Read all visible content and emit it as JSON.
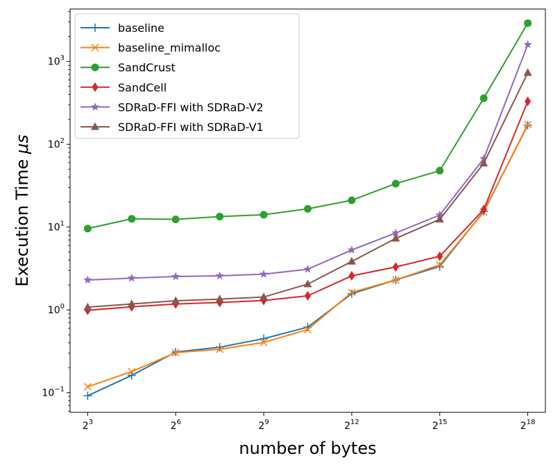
{
  "chart_data": {
    "type": "line",
    "xscale": "log2",
    "yscale": "log10",
    "xlabel": "number of bytes",
    "ylabel_prefix": "Execution Time ",
    "ylabel_symbol": "μs",
    "xlim_exp": [
      2.4,
      18.6
    ],
    "ylim": [
      0.058,
      4300
    ],
    "x_exponents": [
      3,
      4.5,
      6,
      7.5,
      9,
      10.5,
      12,
      13.5,
      15,
      16.5,
      18
    ],
    "xticks": [
      {
        "base": "2",
        "exp": "3",
        "value": 3
      },
      {
        "base": "2",
        "exp": "6",
        "value": 6
      },
      {
        "base": "2",
        "exp": "9",
        "value": 9
      },
      {
        "base": "2",
        "exp": "12",
        "value": 12
      },
      {
        "base": "2",
        "exp": "15",
        "value": 15
      },
      {
        "base": "2",
        "exp": "18",
        "value": 18
      }
    ],
    "yticks": [
      {
        "base": "10",
        "exp": "−1",
        "value": 0.1
      },
      {
        "base": "10",
        "exp": "0",
        "value": 1
      },
      {
        "base": "10",
        "exp": "1",
        "value": 10
      },
      {
        "base": "10",
        "exp": "2",
        "value": 100
      },
      {
        "base": "10",
        "exp": "3",
        "value": 1000
      }
    ],
    "series": [
      {
        "name": "baseline",
        "color": "#1f77b4",
        "marker": "plus",
        "values": [
          0.092,
          0.162,
          0.31,
          0.355,
          0.45,
          0.62,
          1.57,
          2.3,
          3.35,
          15.5,
          170
        ]
      },
      {
        "name": "baseline_mimalloc",
        "color": "#ff7f0e",
        "marker": "x",
        "values": [
          0.118,
          0.18,
          0.305,
          0.335,
          0.405,
          0.58,
          1.63,
          2.3,
          3.5,
          15.2,
          173
        ]
      },
      {
        "name": "SandCrust",
        "color": "#2ca02c",
        "marker": "circle",
        "values": [
          9.6,
          12.6,
          12.4,
          13.4,
          14.1,
          16.6,
          21.1,
          33.5,
          48.0,
          360,
          2900
        ]
      },
      {
        "name": "SandCell",
        "color": "#d62728",
        "marker": "diamond",
        "values": [
          0.99,
          1.09,
          1.18,
          1.23,
          1.3,
          1.48,
          2.58,
          3.3,
          4.45,
          16.3,
          330
        ]
      },
      {
        "name": "SDRaD-FFI with SDRaD-V2",
        "color": "#9467bd",
        "marker": "star",
        "values": [
          2.3,
          2.42,
          2.53,
          2.58,
          2.7,
          3.1,
          5.3,
          8.5,
          14.0,
          67,
          1600
        ]
      },
      {
        "name": "SDRaD-FFI with SDRaD-V1",
        "color": "#8c564b",
        "marker": "triangle",
        "values": [
          1.08,
          1.18,
          1.29,
          1.35,
          1.43,
          2.05,
          3.85,
          7.3,
          12.4,
          59,
          730
        ]
      }
    ],
    "legend_position": "upper-left",
    "grid": false
  }
}
